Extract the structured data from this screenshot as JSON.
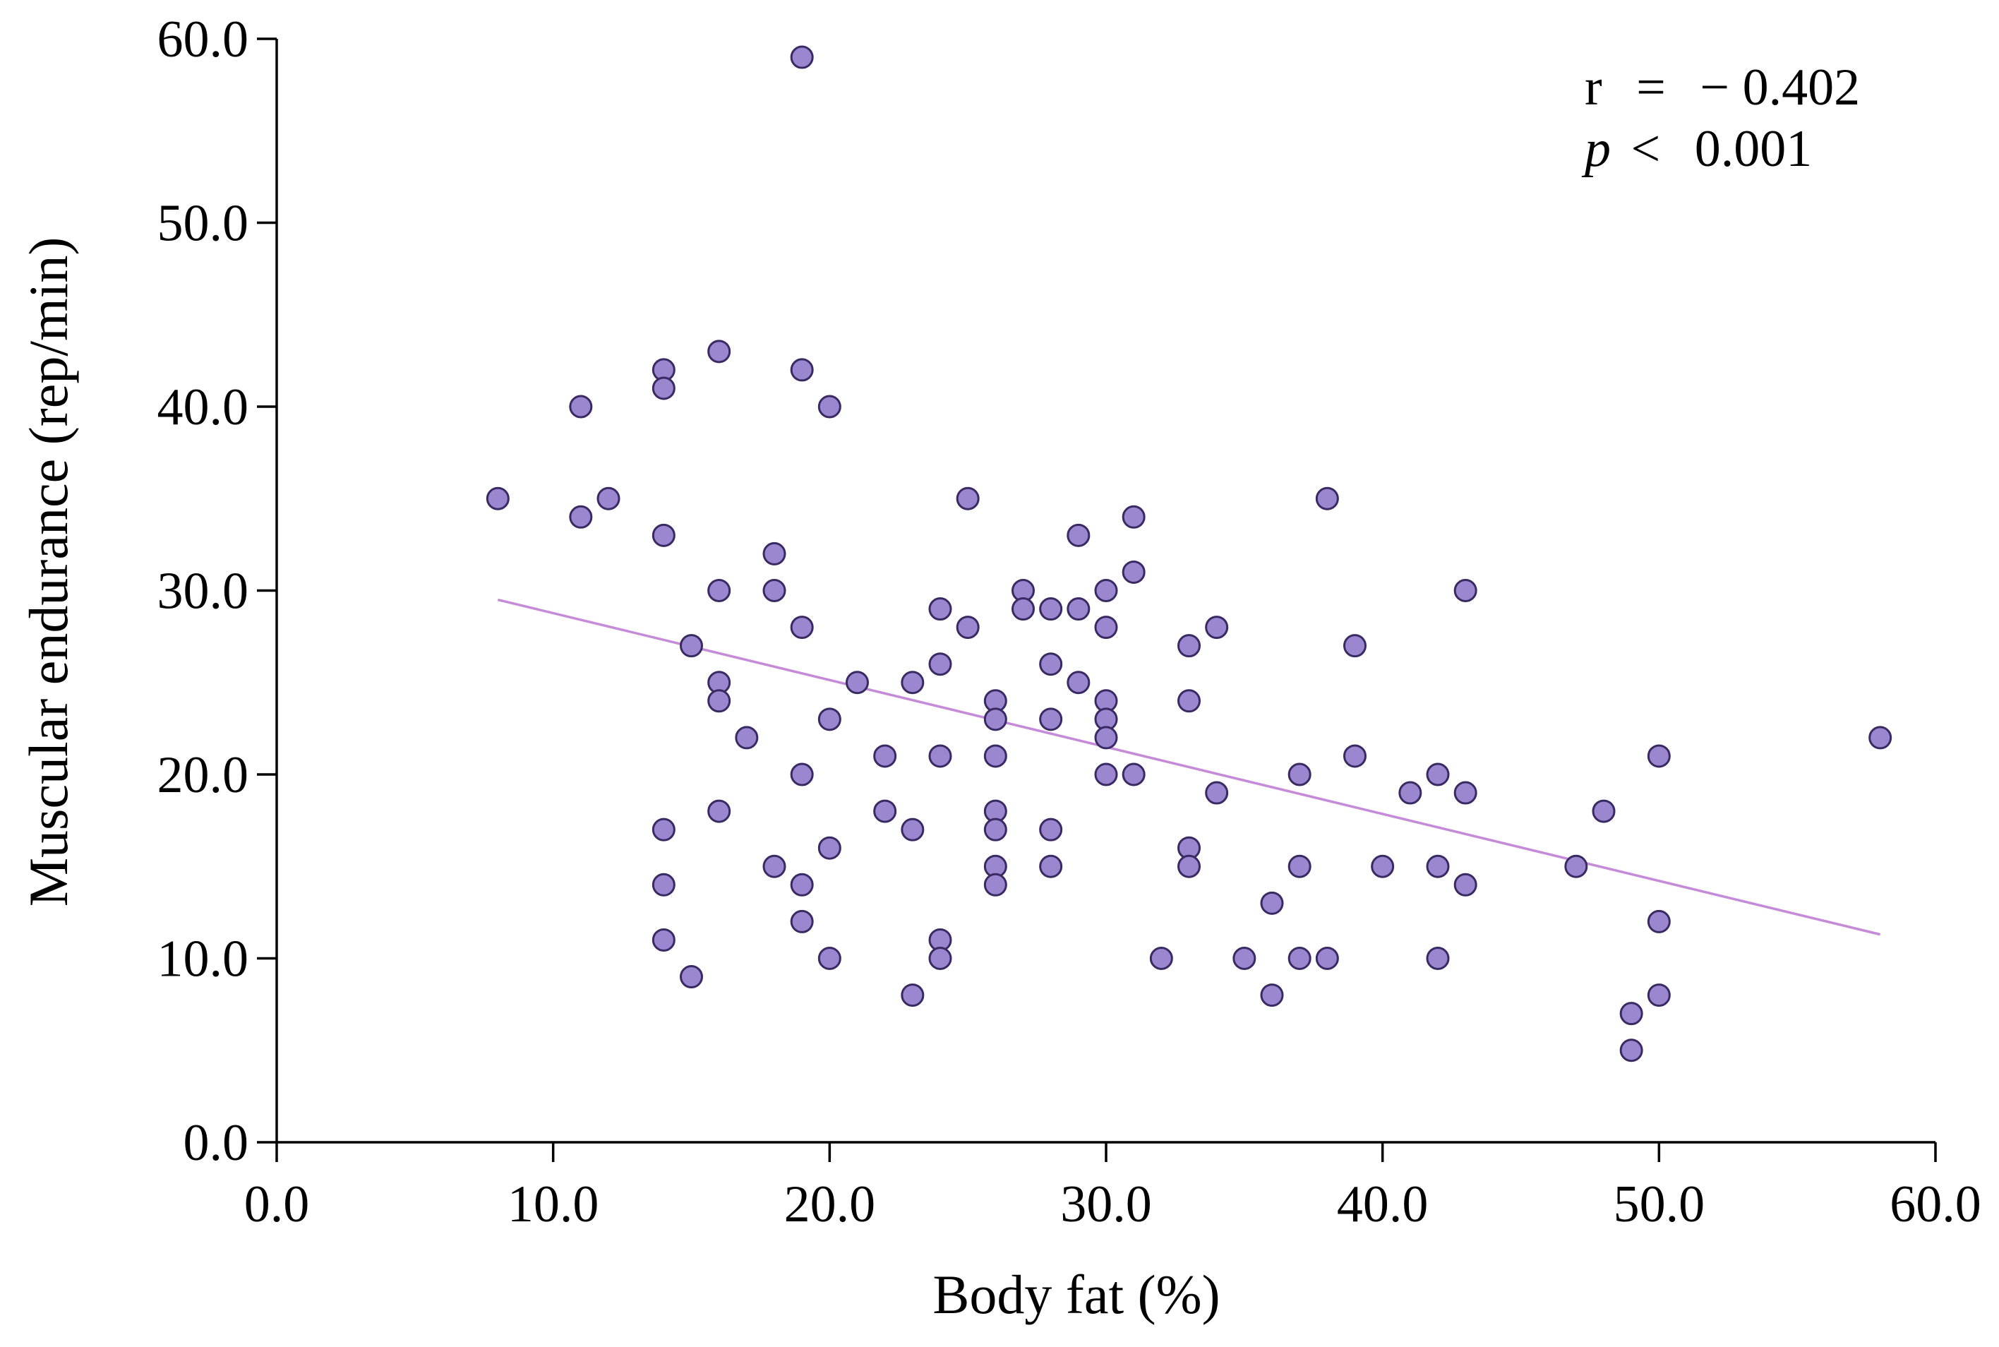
{
  "chart_data": {
    "type": "scatter",
    "title": "",
    "xlabel": "Body fat (%)",
    "ylabel": "Muscular endurance (rep/min)",
    "xlim": [
      0,
      60
    ],
    "ylim": [
      0,
      60
    ],
    "x_ticks": [
      "0.0",
      "10.0",
      "20.0",
      "30.0",
      "40.0",
      "50.0",
      "60.0"
    ],
    "y_ticks": [
      "0.0",
      "10.0",
      "20.0",
      "30.0",
      "40.0",
      "50.0",
      "60.0"
    ],
    "grid": false,
    "annotation": {
      "r_label": "r",
      "r_eq": "=",
      "r_value": "− 0.402",
      "p_label": "p",
      "p_op": "<",
      "p_value": "0.001"
    },
    "regression": {
      "x": [
        8,
        58
      ],
      "y": [
        29.5,
        11.3
      ]
    },
    "points": [
      [
        8,
        35
      ],
      [
        11,
        40
      ],
      [
        11,
        34
      ],
      [
        12,
        35
      ],
      [
        14,
        42
      ],
      [
        14,
        41
      ],
      [
        14,
        33
      ],
      [
        14,
        17
      ],
      [
        14,
        14
      ],
      [
        14,
        11
      ],
      [
        15,
        27
      ],
      [
        15,
        9
      ],
      [
        16,
        43
      ],
      [
        16,
        30
      ],
      [
        16,
        25
      ],
      [
        16,
        24
      ],
      [
        16,
        18
      ],
      [
        17,
        22
      ],
      [
        18,
        32
      ],
      [
        18,
        30
      ],
      [
        18,
        15
      ],
      [
        19,
        59
      ],
      [
        19,
        42
      ],
      [
        19,
        28
      ],
      [
        19,
        20
      ],
      [
        19,
        14
      ],
      [
        19,
        12
      ],
      [
        20,
        40
      ],
      [
        20,
        23
      ],
      [
        20,
        16
      ],
      [
        20,
        10
      ],
      [
        21,
        25
      ],
      [
        22,
        21
      ],
      [
        22,
        18
      ],
      [
        23,
        25
      ],
      [
        23,
        17
      ],
      [
        23,
        8
      ],
      [
        24,
        29
      ],
      [
        24,
        26
      ],
      [
        24,
        21
      ],
      [
        24,
        11
      ],
      [
        24,
        10
      ],
      [
        25,
        35
      ],
      [
        25,
        28
      ],
      [
        26,
        24
      ],
      [
        26,
        23
      ],
      [
        26,
        21
      ],
      [
        26,
        18
      ],
      [
        26,
        17
      ],
      [
        26,
        15
      ],
      [
        26,
        14
      ],
      [
        27,
        30
      ],
      [
        27,
        29
      ],
      [
        28,
        29
      ],
      [
        28,
        26
      ],
      [
        28,
        23
      ],
      [
        28,
        17
      ],
      [
        28,
        15
      ],
      [
        29,
        33
      ],
      [
        29,
        29
      ],
      [
        29,
        25
      ],
      [
        30,
        30
      ],
      [
        30,
        28
      ],
      [
        30,
        24
      ],
      [
        30,
        23
      ],
      [
        30,
        22
      ],
      [
        30,
        20
      ],
      [
        31,
        34
      ],
      [
        31,
        31
      ],
      [
        31,
        20
      ],
      [
        32,
        10
      ],
      [
        33,
        27
      ],
      [
        33,
        24
      ],
      [
        33,
        16
      ],
      [
        33,
        15
      ],
      [
        34,
        28
      ],
      [
        34,
        19
      ],
      [
        35,
        10
      ],
      [
        36,
        13
      ],
      [
        36,
        8
      ],
      [
        37,
        20
      ],
      [
        37,
        15
      ],
      [
        37,
        10
      ],
      [
        38,
        35
      ],
      [
        38,
        10
      ],
      [
        39,
        27
      ],
      [
        39,
        21
      ],
      [
        40,
        15
      ],
      [
        41,
        19
      ],
      [
        42,
        20
      ],
      [
        42,
        15
      ],
      [
        42,
        10
      ],
      [
        43,
        30
      ],
      [
        43,
        19
      ],
      [
        43,
        14
      ],
      [
        47,
        15
      ],
      [
        48,
        18
      ],
      [
        49,
        7
      ],
      [
        49,
        5
      ],
      [
        50,
        21
      ],
      [
        50,
        12
      ],
      [
        50,
        8
      ],
      [
        58,
        22
      ]
    ]
  }
}
